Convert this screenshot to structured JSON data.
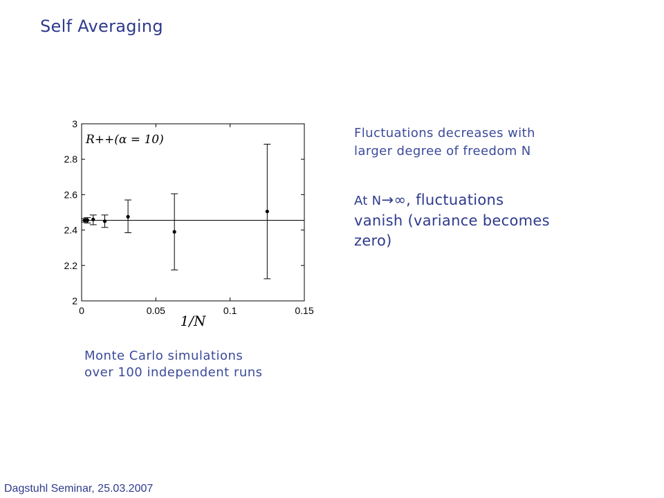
{
  "slide": {
    "title": "Self Averaging",
    "caption_line1": "Monte Carlo simulations",
    "caption_line2": "over 100 independent runs",
    "note1_line1": "Fluctuations decreases with",
    "note1_line2": "larger degree of freedom N",
    "note2_part1": "At N",
    "note2_arrow": "→∞",
    "note2_part2": ", fluctuations",
    "note2_part3": "vanish",
    "note2_part4": " (variance becomes",
    "note2_part5": "zero)",
    "footer": "Dagstuhl Seminar, 25.03.2007",
    "colors": {
      "text": "#2e3a8c",
      "caption": "#3b4a9a"
    }
  },
  "chart_data": {
    "type": "scatter",
    "title": "",
    "xlabel": "1/N",
    "ylabel": "",
    "xlim": [
      0,
      0.15
    ],
    "ylim": [
      2,
      3
    ],
    "xticks": [
      0,
      0.05,
      0.1,
      0.15
    ],
    "xtick_labels": [
      "0",
      "0.05",
      "0.1",
      "0.15"
    ],
    "yticks": [
      2,
      2.2,
      2.4,
      2.6,
      2.8,
      3
    ],
    "ytick_labels": [
      "2",
      "2.2",
      "2.4",
      "2.6",
      "2.8",
      "3"
    ],
    "annotation": "R++(α = 10)",
    "reference_line_y": 2.455,
    "grid": false,
    "points": [
      {
        "x": 0.002,
        "y": 2.455,
        "lo": 2.445,
        "hi": 2.465
      },
      {
        "x": 0.0039,
        "y": 2.455,
        "lo": 2.44,
        "hi": 2.47
      },
      {
        "x": 0.0078,
        "y": 2.46,
        "lo": 2.43,
        "hi": 2.485
      },
      {
        "x": 0.0156,
        "y": 2.45,
        "lo": 2.415,
        "hi": 2.485
      },
      {
        "x": 0.03125,
        "y": 2.475,
        "lo": 2.385,
        "hi": 2.57
      },
      {
        "x": 0.0625,
        "y": 2.39,
        "lo": 2.175,
        "hi": 2.605
      },
      {
        "x": 0.125,
        "y": 2.505,
        "lo": 2.125,
        "hi": 2.885
      }
    ]
  }
}
